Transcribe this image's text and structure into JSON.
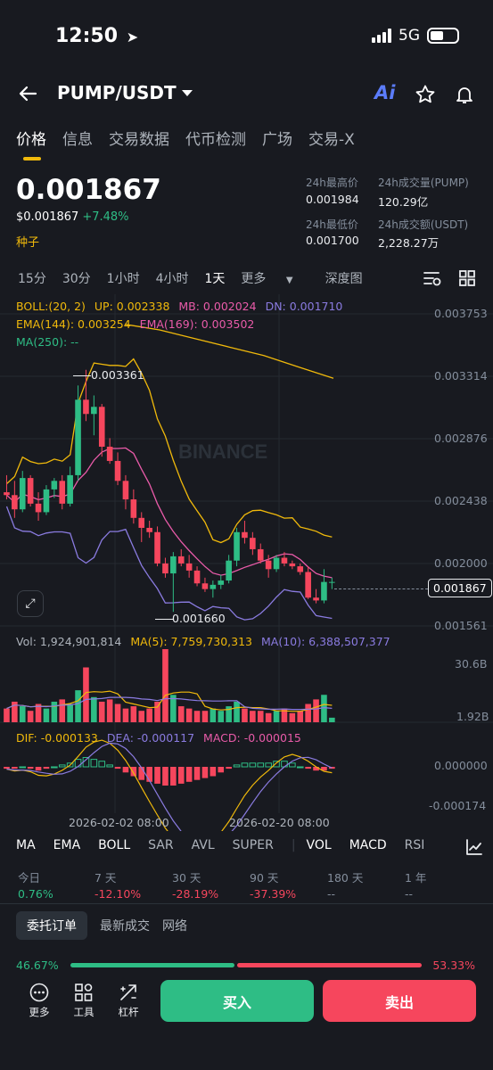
{
  "status_bar": {
    "time": "12:50",
    "network": "5G"
  },
  "header": {
    "pair": "PUMP/USDT",
    "ai_label": "Ai"
  },
  "tabs": [
    "价格",
    "信息",
    "交易数据",
    "代币检测",
    "广场",
    "交易-X"
  ],
  "price": {
    "last": "0.001867",
    "usd": "$0.001867",
    "change": "+7.48%",
    "tag": "种子",
    "high_label": "24h最高价",
    "high": "0.001984",
    "low_label": "24h最低价",
    "low": "0.001700",
    "vol_label": "24h成交量(PUMP)",
    "vol": "120.29亿",
    "turnover_label": "24h成交额(USDT)",
    "turnover": "2,228.27万"
  },
  "intervals": [
    "15分",
    "30分",
    "1小时",
    "4小时",
    "1天",
    "更多",
    "深度图"
  ],
  "indicators": {
    "boll": "BOLL:(20, 2)",
    "up": "UP: 0.002338",
    "mb": "MB: 0.002024",
    "dn": "DN: 0.001710",
    "ema144": "EMA(144): 0.003254",
    "ema169": "EMA(169): 0.003502",
    "ma250": "MA(250): --",
    "high_mark": "0.003361",
    "low_mark": "0.001660",
    "watermark": "BINANCE",
    "vol": "Vol: 1,924,901,814",
    "ma5": "MA(5): 7,759,730,313",
    "ma10": "MA(10): 6,388,507,377",
    "dif": "DIF: -0.000133",
    "dea": "DEA: -0.000117",
    "macd": "MACD: -0.000015"
  },
  "price_axis": [
    "0.003753",
    "0.003314",
    "0.002876",
    "0.002438",
    "0.002000",
    "0.001561"
  ],
  "current_price_tag": "0.001867",
  "vol_axis": [
    "30.6B",
    "1.92B"
  ],
  "macd_axis": [
    "0.000000",
    "-0.000174"
  ],
  "time_axis": [
    "2026-02-02 08:00",
    "2026-02-20 08:00"
  ],
  "indicator_tabs": [
    "MA",
    "EMA",
    "BOLL",
    "SAR",
    "AVL",
    "SUPER",
    "VOL",
    "MACD",
    "RSI"
  ],
  "performance": [
    {
      "label": "今日",
      "value": "0.76%"
    },
    {
      "label": "7 天",
      "value": "-12.10%"
    },
    {
      "label": "30 天",
      "value": "-28.19%"
    },
    {
      "label": "90 天",
      "value": "-37.39%"
    },
    {
      "label": "180 天",
      "value": "--"
    },
    {
      "label": "1 年",
      "value": "--"
    }
  ],
  "order_tabs": [
    "委托订单",
    "最新成交",
    "网络"
  ],
  "ratio": {
    "buy": "46.67%",
    "sell": "53.33%",
    "buy_fraction": 0.4667
  },
  "toolbar": {
    "more": "更多",
    "tools": "工具",
    "leverage": "杠杆",
    "buy": "买入",
    "sell": "卖出"
  },
  "colors": {
    "up": "#2ebd85",
    "down": "#f6465d",
    "accent": "#f0b90b",
    "bg": "#181a20"
  },
  "candles": [
    [
      0.0025,
      0.00262,
      0.00245,
      0.00248
    ],
    [
      0.00248,
      0.00258,
      0.00232,
      0.00238
    ],
    [
      0.00238,
      0.00265,
      0.00236,
      0.0026
    ],
    [
      0.0026,
      0.00262,
      0.0024,
      0.00242
    ],
    [
      0.00242,
      0.0025,
      0.0023,
      0.00236
    ],
    [
      0.00236,
      0.00255,
      0.00234,
      0.00252
    ],
    [
      0.00252,
      0.0026,
      0.00246,
      0.00258
    ],
    [
      0.00258,
      0.00262,
      0.00238,
      0.00242
    ],
    [
      0.00242,
      0.00268,
      0.0024,
      0.00262
    ],
    [
      0.00262,
      0.00325,
      0.00258,
      0.00315
    ],
    [
      0.00315,
      0.00336,
      0.003,
      0.00305
    ],
    [
      0.00305,
      0.00318,
      0.0029,
      0.0031
    ],
    [
      0.0031,
      0.00312,
      0.00275,
      0.00282
    ],
    [
      0.00282,
      0.00288,
      0.0027,
      0.00272
    ],
    [
      0.00272,
      0.00278,
      0.00255,
      0.00258
    ],
    [
      0.00258,
      0.00262,
      0.00238,
      0.00245
    ],
    [
      0.00245,
      0.00252,
      0.00228,
      0.00232
    ],
    [
      0.00232,
      0.00236,
      0.00215,
      0.00225
    ],
    [
      0.00225,
      0.0023,
      0.00218,
      0.00222
    ],
    [
      0.00222,
      0.00226,
      0.00198,
      0.002
    ],
    [
      0.002,
      0.00204,
      0.0019,
      0.00193
    ],
    [
      0.00193,
      0.00208,
      0.00166,
      0.00205
    ],
    [
      0.00205,
      0.0021,
      0.00198,
      0.002
    ],
    [
      0.002,
      0.00206,
      0.0019,
      0.00195
    ],
    [
      0.00195,
      0.00198,
      0.00184,
      0.00186
    ],
    [
      0.00186,
      0.0019,
      0.0018,
      0.00182
    ],
    [
      0.00182,
      0.00188,
      0.00176,
      0.00185
    ],
    [
      0.00185,
      0.00192,
      0.00182,
      0.00188
    ],
    [
      0.00188,
      0.00206,
      0.00186,
      0.00202
    ],
    [
      0.00202,
      0.00225,
      0.00198,
      0.00222
    ],
    [
      0.00222,
      0.0023,
      0.00214,
      0.00218
    ],
    [
      0.00218,
      0.00222,
      0.00206,
      0.0021
    ],
    [
      0.0021,
      0.00214,
      0.002,
      0.00202
    ],
    [
      0.00202,
      0.00206,
      0.0019,
      0.00196
    ],
    [
      0.00196,
      0.00206,
      0.00194,
      0.00204
    ],
    [
      0.00204,
      0.00208,
      0.00198,
      0.002
    ],
    [
      0.002,
      0.00202,
      0.00196,
      0.00198
    ],
    [
      0.00198,
      0.002,
      0.00192,
      0.00194
    ],
    [
      0.00194,
      0.00198,
      0.00175,
      0.00176
    ],
    [
      0.00176,
      0.00182,
      0.00172,
      0.00174
    ],
    [
      0.00174,
      0.00196,
      0.00172,
      0.00187
    ],
    [
      0.00187,
      0.0019,
      0.00182,
      0.00187
    ]
  ],
  "volumes": [
    0.6,
    0.9,
    0.7,
    0.5,
    0.8,
    0.6,
    0.9,
    1.0,
    0.8,
    1.4,
    2.4,
    1.1,
    0.9,
    1.0,
    0.8,
    0.6,
    0.7,
    0.5,
    0.6,
    0.9,
    3.2,
    1.2,
    0.7,
    0.6,
    0.5,
    0.5,
    0.6,
    0.5,
    0.7,
    0.9,
    0.6,
    0.5,
    0.5,
    0.4,
    0.5,
    0.6,
    0.4,
    0.5,
    0.8,
    1.0,
    1.2,
    0.2
  ],
  "macd_hist": [
    -1e-05,
    -1e-05,
    0.0,
    -1e-05,
    -2e-05,
    -1e-05,
    0.0,
    1e-05,
    2e-05,
    4e-05,
    5e-05,
    4e-05,
    3e-05,
    1e-05,
    -1e-05,
    -3e-05,
    -5e-05,
    -7e-05,
    -8e-05,
    -9e-05,
    -0.0001,
    -0.0001,
    -9e-05,
    -8e-05,
    -7e-05,
    -6e-05,
    -5e-05,
    -3e-05,
    -1e-05,
    1e-05,
    2e-05,
    2e-05,
    2e-05,
    2e-05,
    3e-05,
    3e-05,
    2e-05,
    0.0,
    -1e-05,
    -2e-05,
    -2e-05,
    -1e-05
  ]
}
